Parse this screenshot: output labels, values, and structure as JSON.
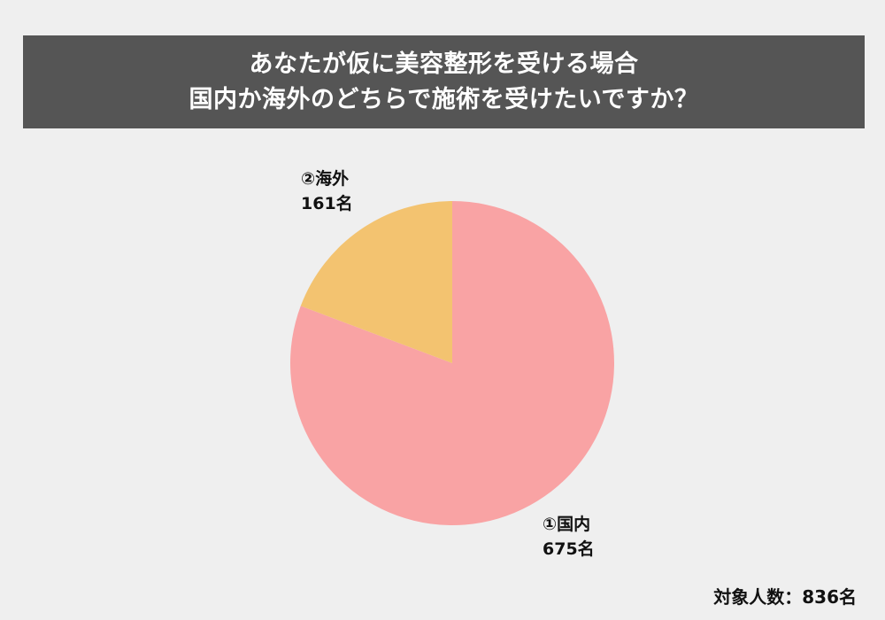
{
  "title": {
    "line1": "あなたが仮に美容整形を受ける場合",
    "line2": "国内か海外のどちらで施術を受けたいですか？"
  },
  "chart_data": {
    "type": "pie",
    "categories": [
      "①国内",
      "②海外"
    ],
    "values": [
      675,
      161
    ],
    "value_labels": [
      "675名",
      "161名"
    ],
    "colors": [
      "#f9a3a4",
      "#f3c370"
    ],
    "start_angle": "12 o'clock",
    "direction": "clockwise"
  },
  "footer": {
    "respondents": "対象人数：836名"
  },
  "colors": {
    "background": "#efefef",
    "title_banner": "#555555",
    "title_text": "#ffffff"
  }
}
